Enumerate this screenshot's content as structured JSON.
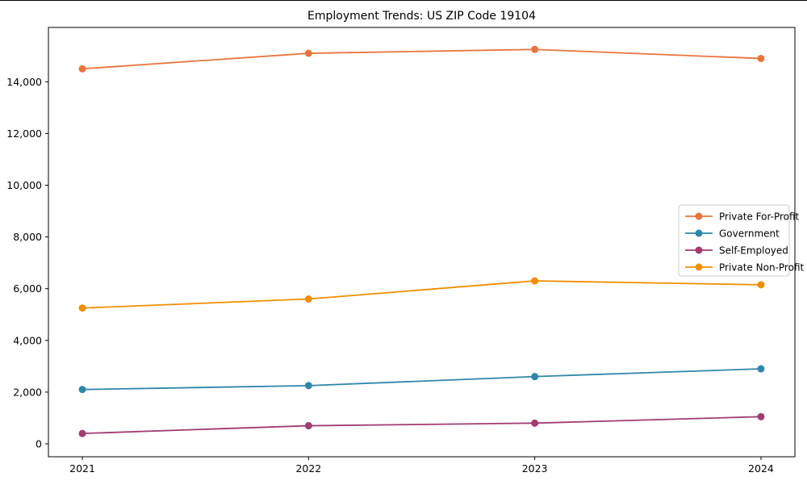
{
  "chart_data": {
    "type": "line",
    "title": "Employment Trends: US ZIP Code 19104",
    "xlabel": "",
    "ylabel": "",
    "x": [
      2021,
      2022,
      2023,
      2024
    ],
    "x_tick_labels": [
      "2021",
      "2022",
      "2023",
      "2024"
    ],
    "y_ticks": [
      0,
      2000,
      4000,
      6000,
      8000,
      10000,
      12000,
      14000
    ],
    "y_tick_labels": [
      "0",
      "2,000",
      "4,000",
      "6,000",
      "8,000",
      "10,000",
      "12,000",
      "14,000"
    ],
    "xlim": [
      2020.85,
      2024.15
    ],
    "ylim": [
      -500,
      16100
    ],
    "grid": false,
    "legend_position": "center-right",
    "series": [
      {
        "name": "Private For-Profit",
        "color": "#E8743B",
        "values": [
          14500,
          15100,
          15250,
          14900
        ]
      },
      {
        "name": "Government",
        "color": "#2E86AB",
        "values": [
          2100,
          2250,
          2600,
          2900
        ]
      },
      {
        "name": "Self-Employed",
        "color": "#A23B72",
        "values": [
          400,
          700,
          800,
          1050
        ]
      },
      {
        "name": "Private Non-Profit",
        "color": "#F18F01",
        "values": [
          5250,
          5600,
          6300,
          6150
        ]
      }
    ],
    "colors": {
      "axis": "#000000",
      "text": "#000000",
      "legend_border": "#cccccc",
      "background": "#ffffff"
    }
  }
}
